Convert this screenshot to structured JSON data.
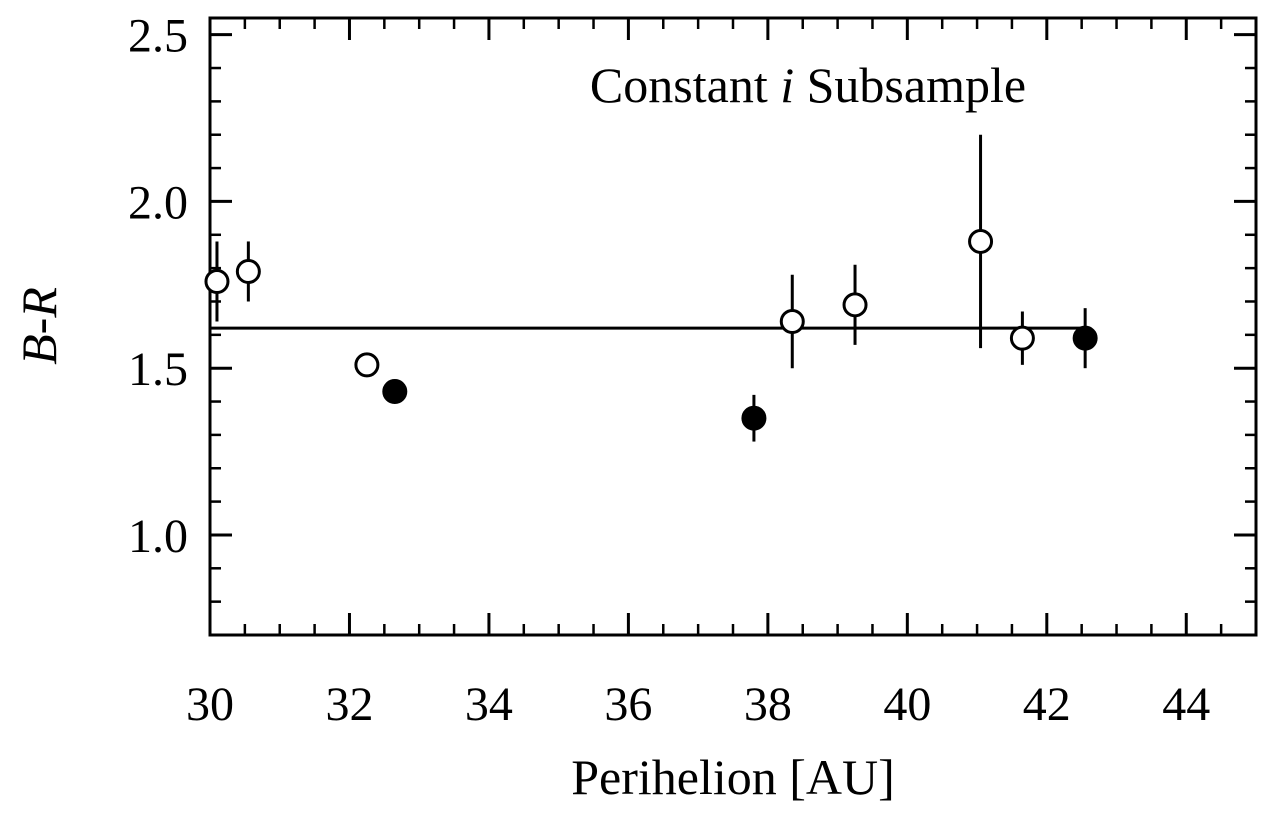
{
  "chart_data": {
    "type": "scatter",
    "title": "",
    "annotation": {
      "prefix": "Constant ",
      "italic": "i",
      "suffix": " Subsample"
    },
    "xlabel": "Perihelion [AU]",
    "ylabel": {
      "a": "B",
      "sep": "-",
      "b": "R"
    },
    "xlim": [
      30,
      45
    ],
    "ylim": [
      0.7,
      2.55
    ],
    "xticks": [
      30,
      32,
      34,
      36,
      38,
      40,
      42,
      44
    ],
    "xtick_labels": [
      "30",
      "32",
      "34",
      "36",
      "38",
      "40",
      "42",
      "44"
    ],
    "yticks": [
      1.0,
      1.5,
      2.0,
      2.5
    ],
    "ytick_labels": [
      "1.0",
      "1.5",
      "2.0",
      "2.5"
    ],
    "grid": false,
    "fit_line": {
      "y": 1.62,
      "x_start": 30,
      "x_end": 42.6
    },
    "series": [
      {
        "marker": "open-circle",
        "points": [
          {
            "x": 30.1,
            "y": 1.76,
            "err": 0.12
          },
          {
            "x": 30.55,
            "y": 1.79,
            "err": 0.09
          },
          {
            "x": 32.25,
            "y": 1.51,
            "err": 0.0
          },
          {
            "x": 38.35,
            "y": 1.64,
            "err": 0.14
          },
          {
            "x": 39.25,
            "y": 1.69,
            "err": 0.12
          },
          {
            "x": 41.05,
            "y": 1.88,
            "err": 0.32
          },
          {
            "x": 41.65,
            "y": 1.59,
            "err": 0.08
          }
        ]
      },
      {
        "marker": "filled-circle",
        "points": [
          {
            "x": 32.65,
            "y": 1.43,
            "err": 0.0
          },
          {
            "x": 37.8,
            "y": 1.35,
            "err": 0.07
          },
          {
            "x": 42.55,
            "y": 1.59,
            "err": 0.09
          }
        ]
      }
    ],
    "colors": {
      "axis": "#000000",
      "marker_fill": "#000000",
      "marker_open_fill": "#ffffff"
    }
  }
}
